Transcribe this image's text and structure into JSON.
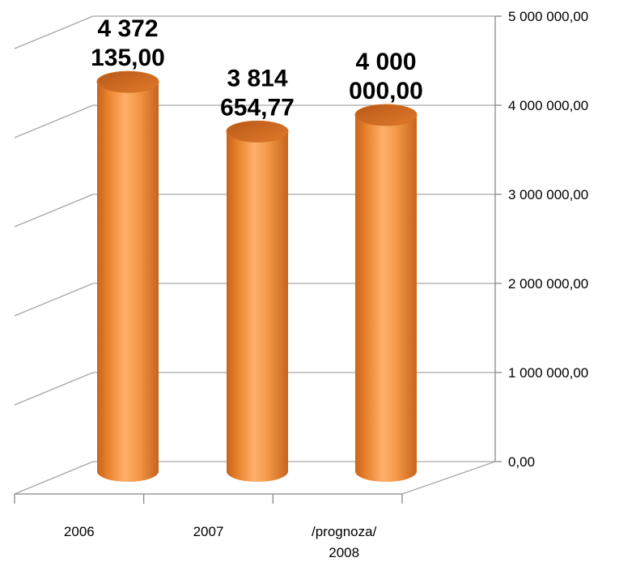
{
  "chart_data": {
    "type": "bar",
    "style": "3d-cylinder",
    "categories": [
      [
        "2006"
      ],
      [
        "2007"
      ],
      [
        "/prognoza/",
        "2008"
      ]
    ],
    "values": [
      4372135.0,
      3814654.77,
      4000000.0
    ],
    "data_labels": [
      [
        "4 372",
        "135,00"
      ],
      [
        "3 814",
        "654,77"
      ],
      [
        "4 000",
        "000,00"
      ]
    ],
    "y_ticks": [
      "0,00",
      "1 000 000,00",
      "2 000 000,00",
      "3 000 000,00",
      "4 000 000,00",
      "5 000 000,00"
    ],
    "ylim": [
      0,
      5000000
    ],
    "y_axis_position": "right",
    "grid": true,
    "legend": "none",
    "title": "",
    "xlabel": "",
    "ylabel": "",
    "colors": {
      "bar": "#f28f3b",
      "bar_dark": "#c8641c",
      "bar_light": "#ffc289",
      "grid": "#a6a6a6",
      "axis": "#888888"
    }
  }
}
